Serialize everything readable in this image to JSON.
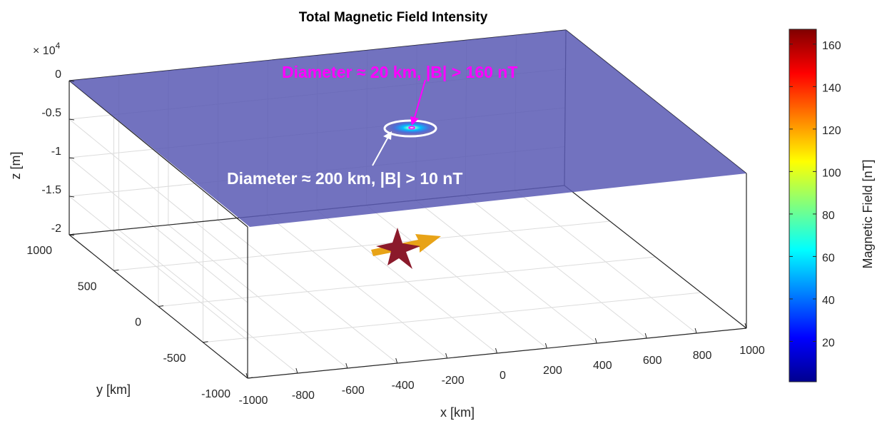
{
  "chart_data": {
    "type": "surface3d",
    "title": "Total Magnetic Field Intensity",
    "xlabel": "x [km]",
    "ylabel": "y [km]",
    "zlabel": "z [m]",
    "z_exponent_label": "× 10",
    "z_exponent_power": "4",
    "xlim": [
      -1000,
      1000
    ],
    "ylim": [
      -1000,
      1000
    ],
    "zlim": [
      -20000,
      0
    ],
    "x_ticks": [
      "-1000",
      "-800",
      "-600",
      "-400",
      "-200",
      "0",
      "200",
      "400",
      "600",
      "800",
      "1000"
    ],
    "y_ticks": [
      "-1000",
      "-500",
      "0",
      "500",
      "1000"
    ],
    "z_ticks": [
      "0",
      "-0.5",
      "-1",
      "-1.5",
      "-2"
    ],
    "grid": true,
    "plane_color": "#5b5bb4",
    "colorbar": {
      "label": "Magnetic Field [nT]",
      "ticks": [
        "20",
        "40",
        "60",
        "80",
        "100",
        "120",
        "140",
        "160"
      ],
      "range": [
        1,
        167
      ],
      "colormap": "jet",
      "location": "right"
    },
    "annotations": [
      {
        "text": "Diameter ≈  20 km, |B| > 160 nT",
        "color": "#ff00ff",
        "diameter_km": 20,
        "threshold_nT": 160
      },
      {
        "text": "Diameter ≈  200 km, |B| > 10 nT",
        "color": "#ffffff",
        "diameter_km": 200,
        "threshold_nT": 10
      }
    ],
    "markers": [
      {
        "name": "star",
        "color": "#8b1a2b"
      },
      {
        "name": "arrow",
        "color": "#e8a317"
      }
    ]
  }
}
